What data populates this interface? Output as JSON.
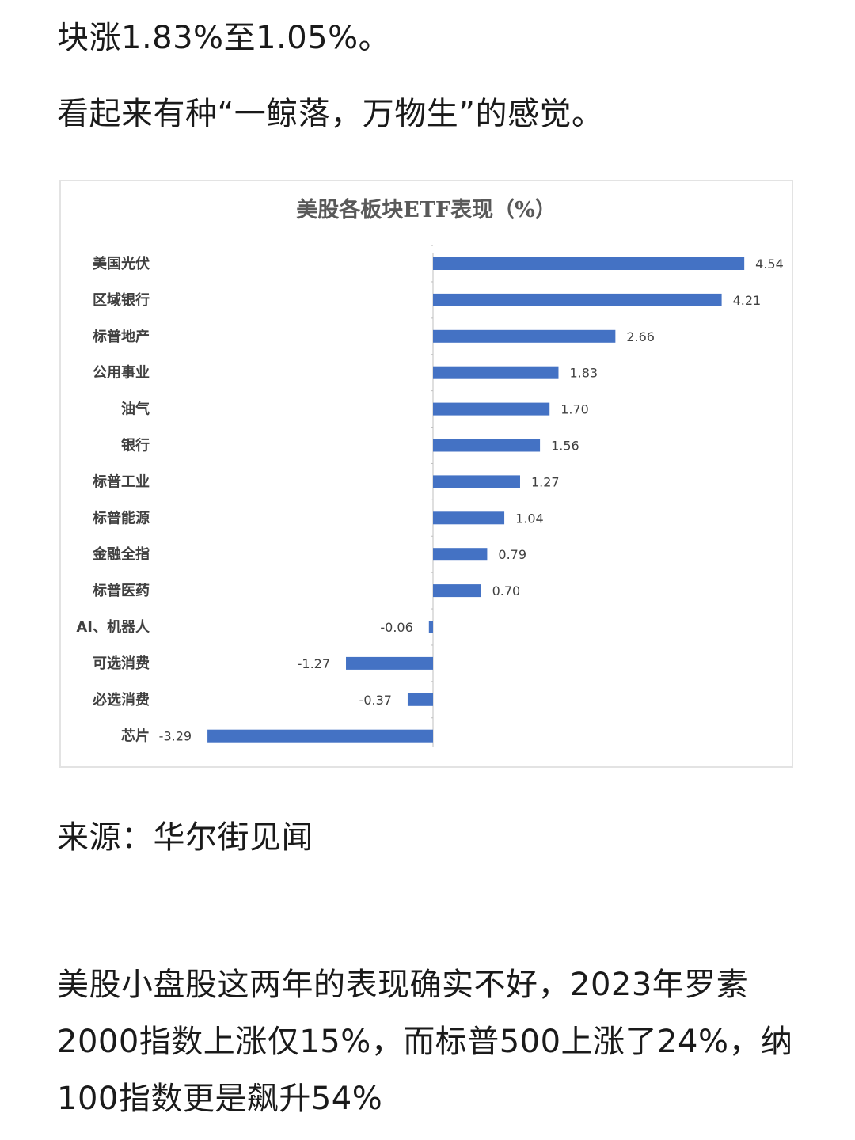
{
  "article": {
    "line_top": "块涨1.83%至1.05%。",
    "line_quote": "看起来有种“一鲸落，万物生”的感觉。",
    "source": "来源：华尔街见闻",
    "paragraph": "美股小盘股这两年的表现确实不好，2023年罗素2000指数上涨仅15%，而标普500上涨了24%，纳100指数更是飙升54%"
  },
  "chart_data": {
    "type": "bar",
    "orientation": "horizontal",
    "title": "美股各板块ETF表现（%）",
    "categories": [
      "美国光伏",
      "区域银行",
      "标普地产",
      "公用事业",
      "油气",
      "银行",
      "标普工业",
      "标普能源",
      "金融全指",
      "标普医药",
      "AI、机器人",
      "可选消费",
      "必选消费",
      "芯片"
    ],
    "values": [
      4.54,
      4.21,
      2.66,
      1.83,
      1.7,
      1.56,
      1.27,
      1.04,
      0.79,
      0.7,
      -0.06,
      -1.27,
      -0.37,
      -3.29
    ],
    "value_labels": [
      "4.54",
      "4.21",
      "2.66",
      "1.83",
      "1.70",
      "1.56",
      "1.27",
      "1.04",
      "0.79",
      "0.70",
      "-0.06",
      "-1.27",
      "-0.37",
      "-3.29"
    ],
    "xlabel": "",
    "ylabel": "",
    "xlim": [
      -3.3,
      4.6
    ],
    "grid": false,
    "legend": "none",
    "bar_color": "#4472c4"
  }
}
